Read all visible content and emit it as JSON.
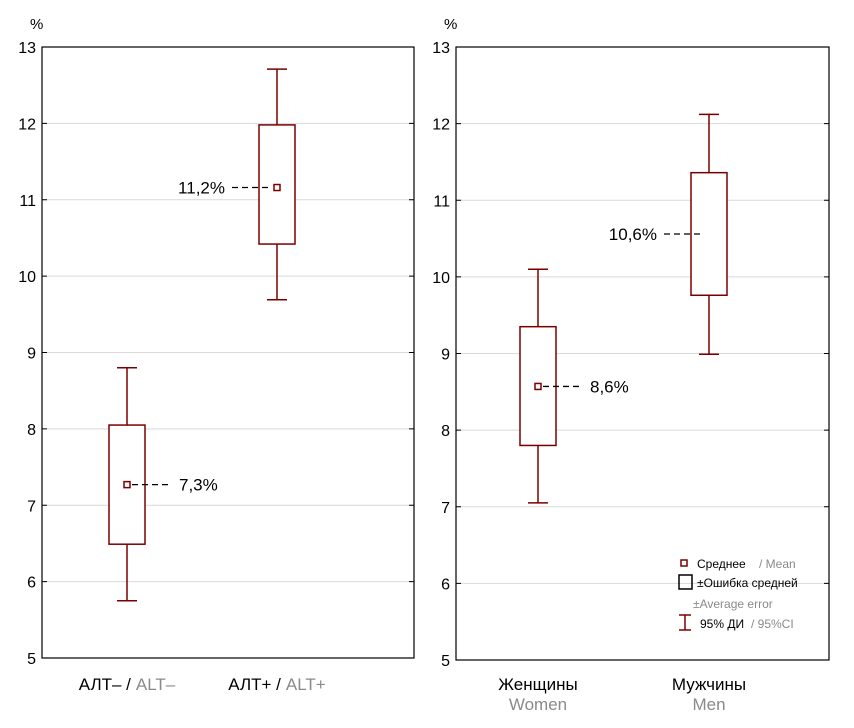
{
  "colors": {
    "box": "#7a0000",
    "grid": "#d9d9d9",
    "axis": "#000000",
    "secondary_text": "#8a8a8a",
    "text": "#000000"
  },
  "chart_data": [
    {
      "type": "box",
      "y_unit_label": "%",
      "ylim": [
        5,
        13
      ],
      "yticks": [
        "5",
        "6",
        "7",
        "8",
        "9",
        "10",
        "11",
        "12",
        "13"
      ],
      "categories": [
        {
          "primary": "АЛТ– /",
          "secondary": "ALT–",
          "inline": true
        },
        {
          "primary": "АЛТ+ /",
          "secondary": "ALT+",
          "inline": true
        }
      ],
      "series": [
        {
          "category": "АЛТ– / ALT–",
          "mean": 7.27,
          "box_low": 6.49,
          "box_high": 8.05,
          "ci_low": 5.75,
          "ci_high": 8.8,
          "label": "7,3%",
          "label_side": "right"
        },
        {
          "category": "АЛТ+ / ALT+",
          "mean": 11.16,
          "box_low": 10.42,
          "box_high": 11.98,
          "ci_low": 9.69,
          "ci_high": 12.71,
          "label": "11,2%",
          "label_side": "left"
        }
      ]
    },
    {
      "type": "box",
      "y_unit_label": "%",
      "ylim": [
        5,
        13
      ],
      "yticks": [
        "5",
        "6",
        "7",
        "8",
        "9",
        "10",
        "11",
        "12",
        "13"
      ],
      "categories": [
        {
          "primary": "Женщины",
          "secondary": "Women",
          "inline": false
        },
        {
          "primary": "Мужчины",
          "secondary": "Men",
          "inline": false
        }
      ],
      "series": [
        {
          "category": "Женщины / Women",
          "mean": 8.57,
          "box_low": 7.8,
          "box_high": 9.35,
          "ci_low": 7.05,
          "ci_high": 10.1,
          "label": "8,6%",
          "label_side": "right"
        },
        {
          "category": "Мужчины / Men",
          "mean": 10.56,
          "box_low": 9.76,
          "box_high": 11.36,
          "ci_low": 8.99,
          "ci_high": 12.12,
          "label": "10,6%",
          "label_side": "left",
          "no_marker": true
        }
      ],
      "legend": {
        "position": "bottom-right",
        "mean": {
          "primary": "Среднее",
          "secondary": "/ Mean"
        },
        "error": {
          "primary": "±Ошибка средней",
          "secondary": "±Average error"
        },
        "ci": {
          "primary": "95% ДИ",
          "secondary": "/ 95%CI"
        }
      }
    }
  ]
}
